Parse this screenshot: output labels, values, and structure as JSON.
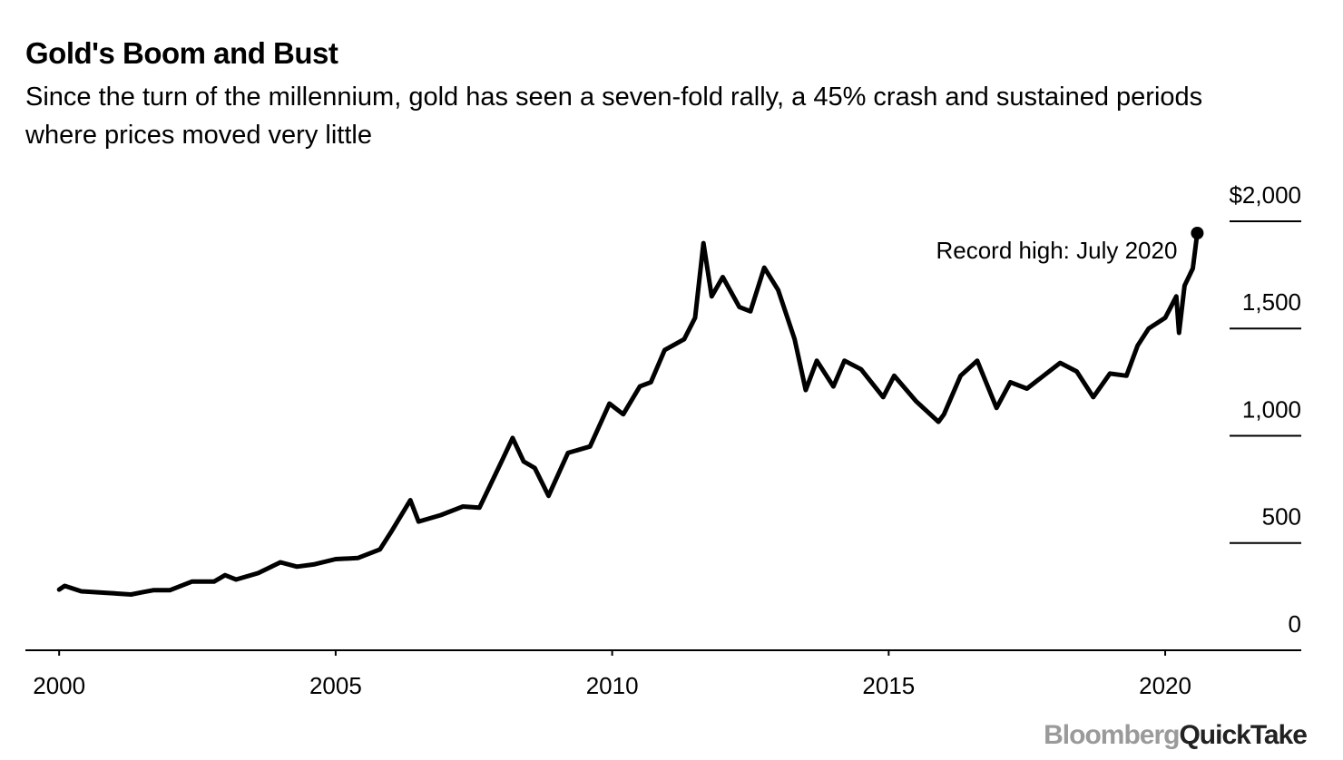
{
  "chart_data": {
    "type": "line",
    "title": "Gold's Boom and Bust",
    "subtitle": "Since the turn of the millennium, gold has seen a seven-fold rally, a 45% crash and sustained periods where prices moved very little",
    "annotation": "Record high: July 2020",
    "source": [
      "Bloomberg",
      "QuickTake"
    ],
    "xlim": [
      1999.39,
      2022.46
    ],
    "xticks": [
      2000,
      2005,
      2010,
      2015,
      2020
    ],
    "ylim": [
      0,
      2000
    ],
    "yticks": [
      {
        "value": 0,
        "label": "0"
      },
      {
        "value": 500,
        "label": "500"
      },
      {
        "value": 1000,
        "label": "1,000"
      },
      {
        "value": 1500,
        "label": "1,500"
      },
      {
        "value": 2000,
        "label": "$2,000"
      }
    ],
    "series": [
      {
        "name": "Gold price",
        "color": "#000000",
        "x": [
          2000.0,
          2000.1,
          2000.4,
          2000.7,
          2001.0,
          2001.3,
          2001.5,
          2001.7,
          2002.0,
          2002.4,
          2002.8,
          2003.0,
          2003.2,
          2003.6,
          2004.0,
          2004.3,
          2004.6,
          2005.0,
          2005.4,
          2005.8,
          2006.0,
          2006.35,
          2006.5,
          2006.9,
          2007.3,
          2007.6,
          2008.0,
          2008.2,
          2008.4,
          2008.6,
          2008.85,
          2009.2,
          2009.6,
          2009.95,
          2010.2,
          2010.5,
          2010.7,
          2010.95,
          2011.3,
          2011.5,
          2011.65,
          2011.8,
          2012.0,
          2012.3,
          2012.5,
          2012.75,
          2013.0,
          2013.3,
          2013.5,
          2013.7,
          2014.0,
          2014.2,
          2014.5,
          2014.9,
          2015.1,
          2015.5,
          2015.9,
          2016.0,
          2016.3,
          2016.6,
          2016.95,
          2017.2,
          2017.5,
          2017.8,
          2018.1,
          2018.4,
          2018.7,
          2019.0,
          2019.3,
          2019.5,
          2019.7,
          2020.0,
          2020.2,
          2020.25,
          2020.35,
          2020.5,
          2020.58
        ],
        "values": [
          283,
          300,
          275,
          270,
          265,
          260,
          270,
          280,
          280,
          320,
          320,
          350,
          330,
          360,
          410,
          390,
          400,
          425,
          430,
          470,
          550,
          700,
          600,
          630,
          670,
          665,
          880,
          990,
          880,
          850,
          720,
          920,
          950,
          1150,
          1100,
          1230,
          1250,
          1400,
          1450,
          1550,
          1898,
          1650,
          1740,
          1600,
          1580,
          1784,
          1680,
          1450,
          1213,
          1350,
          1230,
          1350,
          1310,
          1180,
          1280,
          1160,
          1065,
          1100,
          1280,
          1350,
          1130,
          1250,
          1220,
          1280,
          1340,
          1300,
          1180,
          1290,
          1280,
          1420,
          1500,
          1550,
          1650,
          1480,
          1700,
          1780,
          1945
        ]
      }
    ]
  }
}
